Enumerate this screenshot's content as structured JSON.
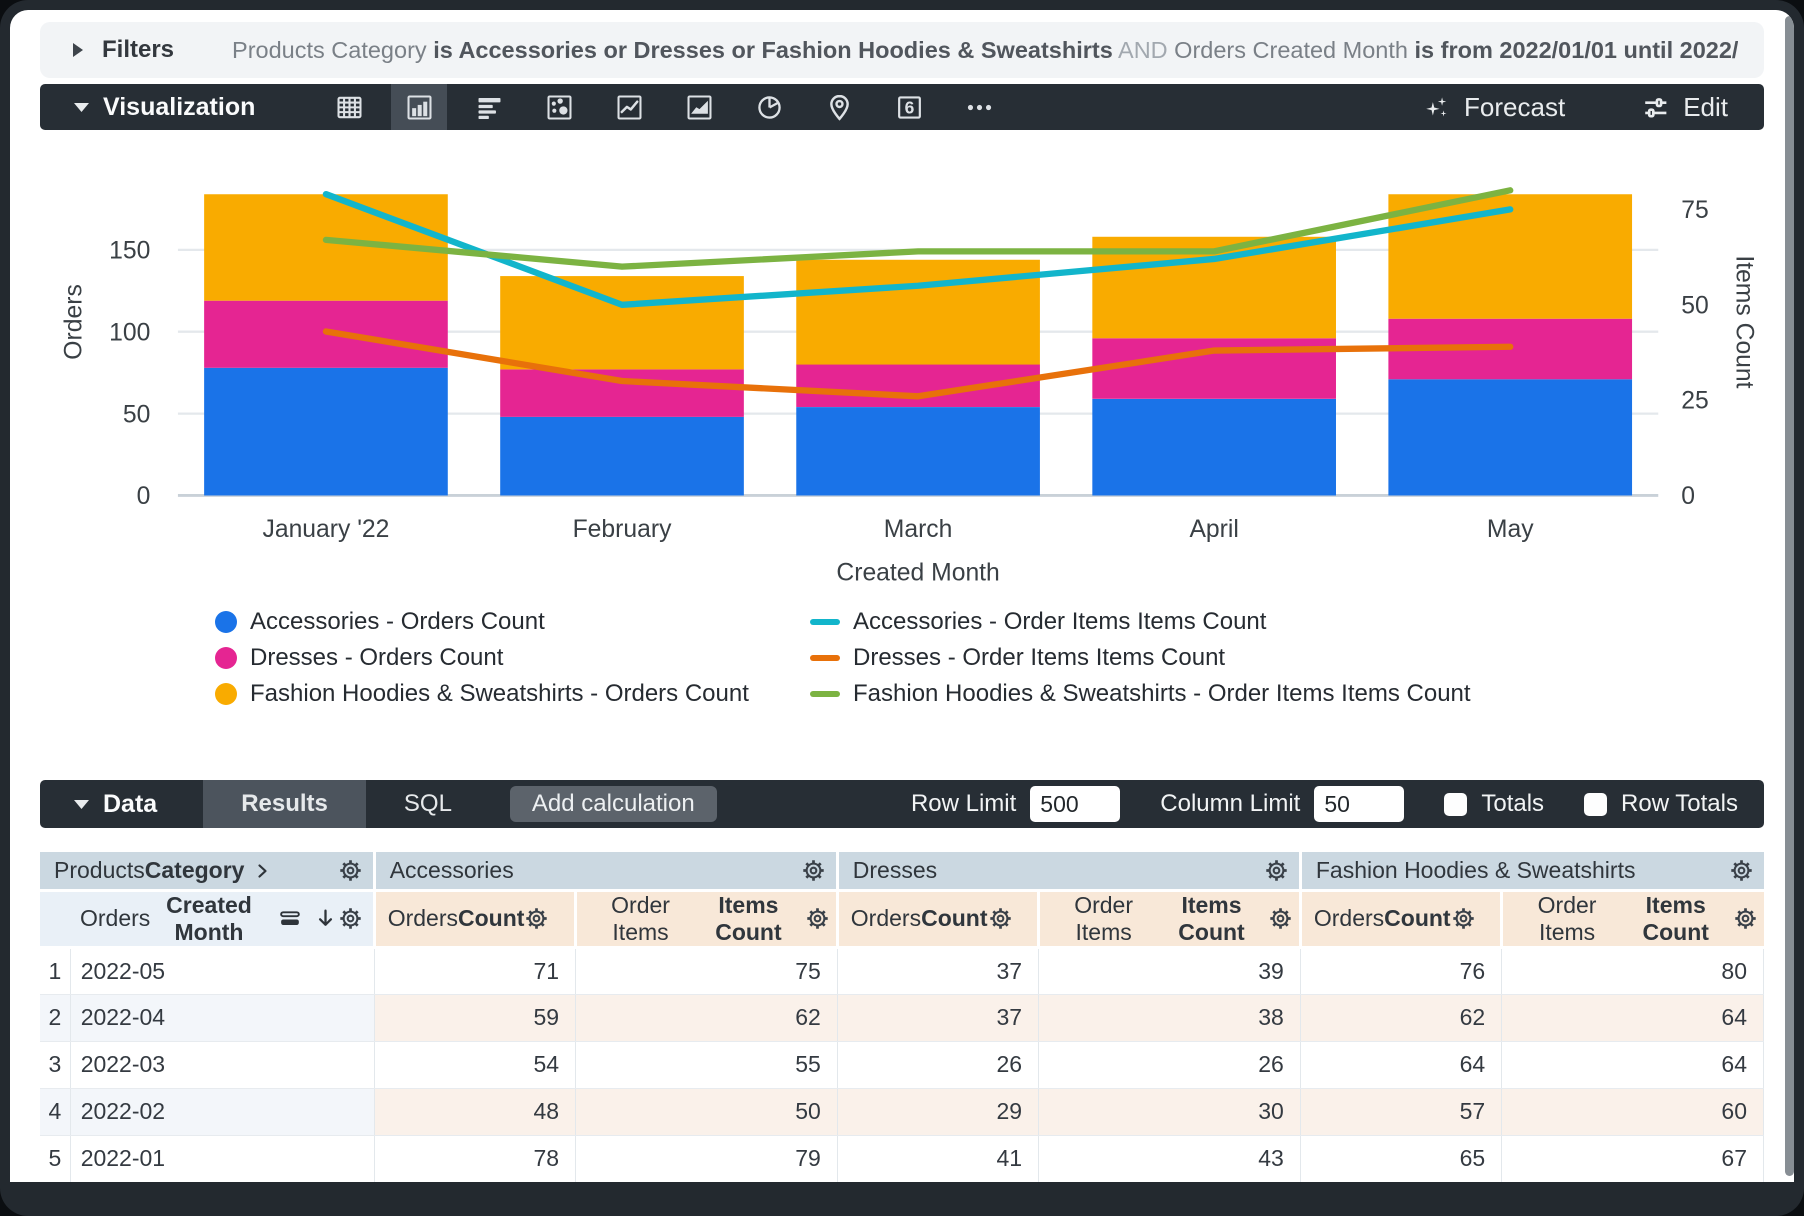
{
  "filters_bar": {
    "title": "Filters",
    "segments": [
      {
        "text": "Products Category ",
        "bold": false,
        "muted": false
      },
      {
        "text": "is Accessories or Dresses or Fashion Hoodies & Sweatshirts",
        "bold": true,
        "muted": false
      },
      {
        "text": " AND ",
        "bold": false,
        "muted": true
      },
      {
        "text": "Orders Created Month ",
        "bold": false,
        "muted": false
      },
      {
        "text": "is from 2022/01/01 until 2022/…",
        "bold": true,
        "muted": false
      }
    ]
  },
  "viz_toolbar": {
    "title": "Visualization",
    "icons": [
      {
        "name": "table-icon",
        "icon": "table",
        "selected": false
      },
      {
        "name": "column-chart-icon",
        "icon": "column",
        "selected": true
      },
      {
        "name": "bar-chart-icon",
        "icon": "barh",
        "selected": false
      },
      {
        "name": "scatter-plot-icon",
        "icon": "scatter",
        "selected": false
      },
      {
        "name": "line-chart-icon",
        "icon": "line",
        "selected": false
      },
      {
        "name": "area-chart-icon",
        "icon": "area",
        "selected": false
      },
      {
        "name": "pie-chart-icon",
        "icon": "pie",
        "selected": false
      },
      {
        "name": "map-pin-icon",
        "icon": "pin",
        "selected": false
      },
      {
        "name": "single-value-icon",
        "icon": "single",
        "label": "6",
        "selected": false
      },
      {
        "name": "more-icon",
        "icon": "more",
        "selected": false
      }
    ],
    "forecast_label": "Forecast",
    "edit_label": "Edit"
  },
  "chart_data": {
    "type": "stacked-bar-with-lines-dual-axis",
    "x_axis": {
      "title": "Created Month",
      "categories": [
        "January '22",
        "February",
        "March",
        "April",
        "May"
      ]
    },
    "left_axis": {
      "title": "Orders",
      "ticks": [
        0,
        50,
        100,
        150
      ],
      "range": [
        0,
        212
      ]
    },
    "right_axis": {
      "title": "Items Count",
      "ticks": [
        0,
        25,
        50,
        75
      ],
      "range": [
        0,
        91
      ]
    },
    "bar_series": [
      {
        "name": "Accessories - Orders Count",
        "color": "#1A73E8",
        "values": [
          78,
          48,
          54,
          59,
          71
        ]
      },
      {
        "name": "Dresses - Orders Count",
        "color": "#E52592",
        "values": [
          41,
          29,
          26,
          37,
          37
        ]
      },
      {
        "name": "Fashion Hoodies & Sweatshirts - Orders Count",
        "color": "#F9AB00",
        "values": [
          65,
          57,
          64,
          62,
          76
        ]
      }
    ],
    "line_series": [
      {
        "name": "Accessories - Order Items Items Count",
        "color": "#12B5CB",
        "values": [
          79,
          50,
          55,
          62,
          75
        ]
      },
      {
        "name": "Dresses - Order Items Items Count",
        "color": "#E8710A",
        "values": [
          43,
          30,
          26,
          38,
          39
        ]
      },
      {
        "name": "Fashion Hoodies & Sweatshirts - Order Items Items Count",
        "color": "#7CB342",
        "values": [
          67,
          60,
          64,
          64,
          80
        ]
      }
    ],
    "grid": true,
    "legend_position": "bottom"
  },
  "data_toolbar": {
    "title": "Data",
    "tabs": [
      {
        "label": "Results",
        "active": true
      },
      {
        "label": "SQL",
        "active": false
      }
    ],
    "add_calculation_label": "Add calculation",
    "row_limit_label": "Row Limit",
    "row_limit_value": "500",
    "column_limit_label": "Column Limit",
    "column_limit_value": "50",
    "totals_label": "Totals",
    "totals_checked": false,
    "row_totals_label": "Row Totals",
    "row_totals_checked": false
  },
  "table": {
    "corner": {
      "regular": "Products ",
      "bold": "Category"
    },
    "dimension": {
      "regular": "Orders ",
      "bold": "Created Month"
    },
    "icons": {
      "corner_chevron": "chevron-right-icon",
      "sort_priority": "sort-bars-icon",
      "sort_direction": "arrow-down-icon",
      "settings": "gear-icon"
    },
    "groups": [
      {
        "label": "Accessories"
      },
      {
        "label": "Dresses"
      },
      {
        "label": "Fashion Hoodies & Sweatshirts"
      }
    ],
    "measure_columns": [
      {
        "regular": "Orders ",
        "bold": "Count"
      },
      {
        "regular": "Order Items ",
        "bold": "Items Count"
      }
    ],
    "rows": [
      {
        "index": "1",
        "dimension": "2022-05",
        "values": [
          "71",
          "75",
          "37",
          "39",
          "76",
          "80"
        ]
      },
      {
        "index": "2",
        "dimension": "2022-04",
        "values": [
          "59",
          "62",
          "37",
          "38",
          "62",
          "64"
        ]
      },
      {
        "index": "3",
        "dimension": "2022-03",
        "values": [
          "54",
          "55",
          "26",
          "26",
          "64",
          "64"
        ]
      },
      {
        "index": "4",
        "dimension": "2022-02",
        "values": [
          "48",
          "50",
          "29",
          "30",
          "57",
          "60"
        ]
      },
      {
        "index": "5",
        "dimension": "2022-01",
        "values": [
          "78",
          "79",
          "41",
          "43",
          "65",
          "67"
        ]
      }
    ]
  },
  "colors": {
    "toolbar_bg": "#272E35",
    "selected_tile_bg": "#454D56",
    "active_tab_bg": "#4C545D",
    "filters_bar_bg": "#F2F4F6",
    "header_group_bg": "#CBD8E1",
    "header_dimension_bg": "#E9F0F7",
    "header_measure_bg": "#F8E8D8",
    "alt_row_dimension_bg": "#F3F6FA",
    "alt_row_measure_bg": "#FAF1EA"
  }
}
